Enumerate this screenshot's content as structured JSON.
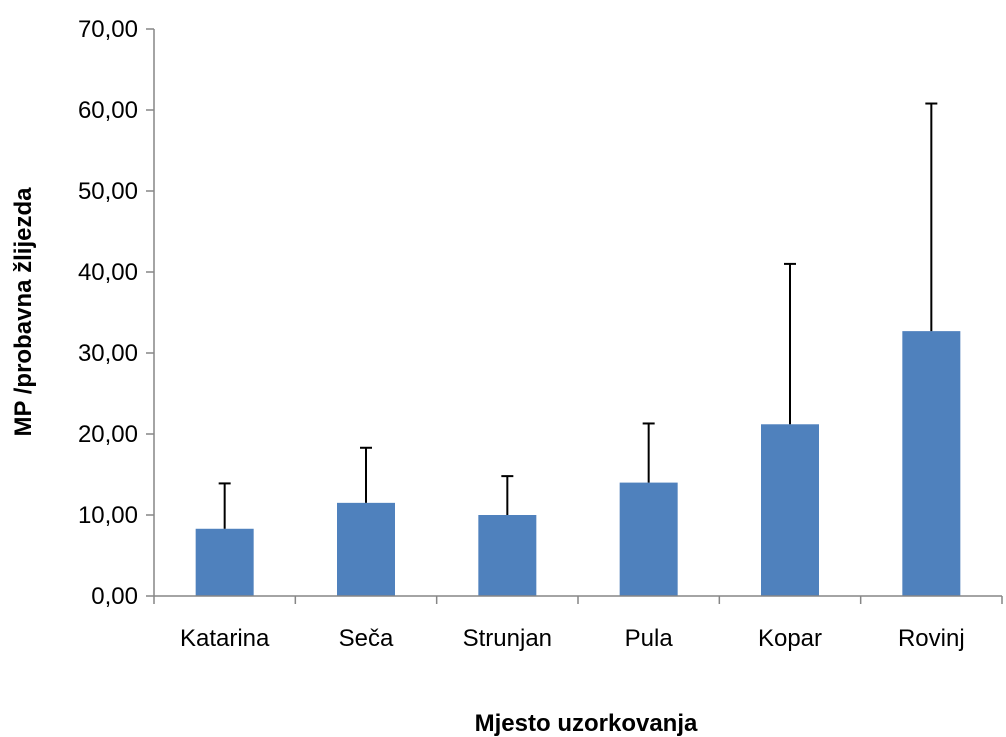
{
  "chart_data": {
    "type": "bar",
    "title": "",
    "xlabel": "Mjesto uzorkovanja",
    "ylabel": "MP /probavna žlijezda",
    "categories": [
      "Katarina",
      "Seča",
      "Strunjan",
      "Pula",
      "Kopar",
      "Rovinj"
    ],
    "series": [
      {
        "values": [
          8.3,
          11.5,
          10.0,
          14.0,
          21.2,
          32.7
        ],
        "error_plus": [
          5.6,
          6.8,
          4.8,
          7.3,
          19.8,
          28.1
        ],
        "color": "#4F81BD"
      }
    ],
    "ylim": [
      0,
      70
    ],
    "yticks": [
      "0,00",
      "10,00",
      "20,00",
      "30,00",
      "40,00",
      "50,00",
      "60,00",
      "70,00"
    ],
    "grid": false,
    "legend": "none"
  }
}
